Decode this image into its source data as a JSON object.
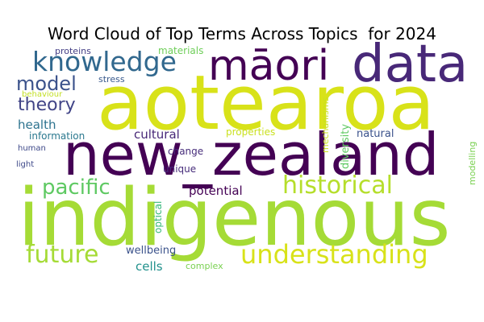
{
  "chart_data": {
    "type": "wordcloud",
    "title": "Word Cloud of Top Terms Across Topics  for 2024",
    "palette": "viridis",
    "words": [
      {
        "text": "indigenous",
        "weight": 100,
        "color": "#a5db36"
      },
      {
        "text": "aotearoa",
        "weight": 98,
        "color": "#d8e219"
      },
      {
        "text": "new_zealand",
        "weight": 92,
        "color": "#440154"
      },
      {
        "text": "data",
        "weight": 72,
        "color": "#482878"
      },
      {
        "text": "māori",
        "weight": 58,
        "color": "#440154"
      },
      {
        "text": "knowledge",
        "weight": 40,
        "color": "#31688e"
      },
      {
        "text": "historical",
        "weight": 36,
        "color": "#b5de2b"
      },
      {
        "text": "understanding",
        "weight": 36,
        "color": "#d8e219"
      },
      {
        "text": "future",
        "weight": 32,
        "color": "#a5db36"
      },
      {
        "text": "pacific",
        "weight": 30,
        "color": "#5ec962"
      },
      {
        "text": "model",
        "weight": 27,
        "color": "#3b528b"
      },
      {
        "text": "theory",
        "weight": 24,
        "color": "#414487"
      },
      {
        "text": "cultural",
        "weight": 17,
        "color": "#482878"
      },
      {
        "text": "health",
        "weight": 17,
        "color": "#2c728e"
      },
      {
        "text": "potential",
        "weight": 17,
        "color": "#440154"
      },
      {
        "text": "cells",
        "weight": 17,
        "color": "#21918c"
      },
      {
        "text": "wellbeing",
        "weight": 14,
        "color": "#3b528b"
      },
      {
        "text": "diversity",
        "weight": 13,
        "color": "#5ec962"
      },
      {
        "text": "natural",
        "weight": 13,
        "color": "#3b528b"
      },
      {
        "text": "materials",
        "weight": 12,
        "color": "#6ece58"
      },
      {
        "text": "information",
        "weight": 12,
        "color": "#2a788e"
      },
      {
        "text": "change",
        "weight": 12,
        "color": "#472d7b"
      },
      {
        "text": "properties",
        "weight": 12,
        "color": "#cae11f"
      },
      {
        "text": "unique",
        "weight": 12,
        "color": "#472d7b"
      },
      {
        "text": "optical",
        "weight": 12,
        "color": "#35b779"
      },
      {
        "text": "proteins",
        "weight": 11,
        "color": "#433e85"
      },
      {
        "text": "stress",
        "weight": 11,
        "color": "#38598c"
      },
      {
        "text": "mechanisms",
        "weight": 11,
        "color": "#cae11f"
      },
      {
        "text": "modelling",
        "weight": 11,
        "color": "#7ad151"
      },
      {
        "text": "behaviour",
        "weight": 10,
        "color": "#c2df23"
      },
      {
        "text": "human",
        "weight": 10,
        "color": "#3e4989"
      },
      {
        "text": "light",
        "weight": 10,
        "color": "#3e4989"
      },
      {
        "text": "complex",
        "weight": 11,
        "color": "#7ad151"
      }
    ]
  }
}
